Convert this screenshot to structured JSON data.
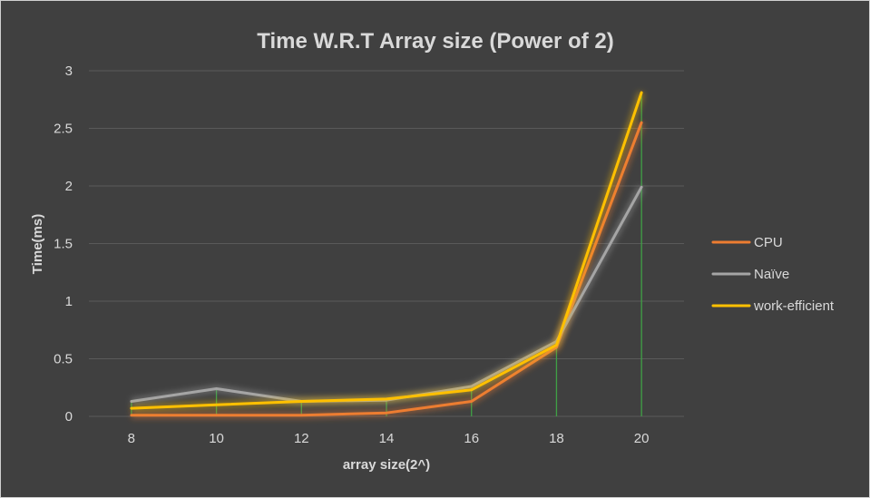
{
  "chart_data": {
    "type": "line",
    "title": "Time W.R.T Array size (Power of 2)",
    "xlabel": "array size(2^)",
    "ylabel": "Time(ms)",
    "x": [
      8,
      10,
      12,
      14,
      16,
      18,
      20
    ],
    "x_tick_labels": [
      "8",
      "10",
      "12",
      "14",
      "16",
      "18",
      "20"
    ],
    "ylim": [
      0,
      3
    ],
    "y_tick_labels": [
      "0",
      "0.5",
      "1",
      "1.5",
      "2",
      "2.5",
      "3"
    ],
    "y_ticks": [
      0,
      0.5,
      1,
      1.5,
      2,
      2.5,
      3
    ],
    "grid": true,
    "drop_lines": true,
    "legend_position": "right",
    "series": [
      {
        "name": "CPU",
        "color": "#ed7d31",
        "values": [
          0.01,
          0.01,
          0.01,
          0.03,
          0.13,
          0.6,
          2.55
        ]
      },
      {
        "name": "Naïve",
        "color": "#a5a5a5",
        "values": [
          0.13,
          0.24,
          0.13,
          0.14,
          0.26,
          0.65,
          1.99
        ]
      },
      {
        "name": "work-efficient",
        "color": "#ffc000",
        "values": [
          0.07,
          0.1,
          0.13,
          0.15,
          0.23,
          0.62,
          2.81
        ]
      }
    ]
  }
}
